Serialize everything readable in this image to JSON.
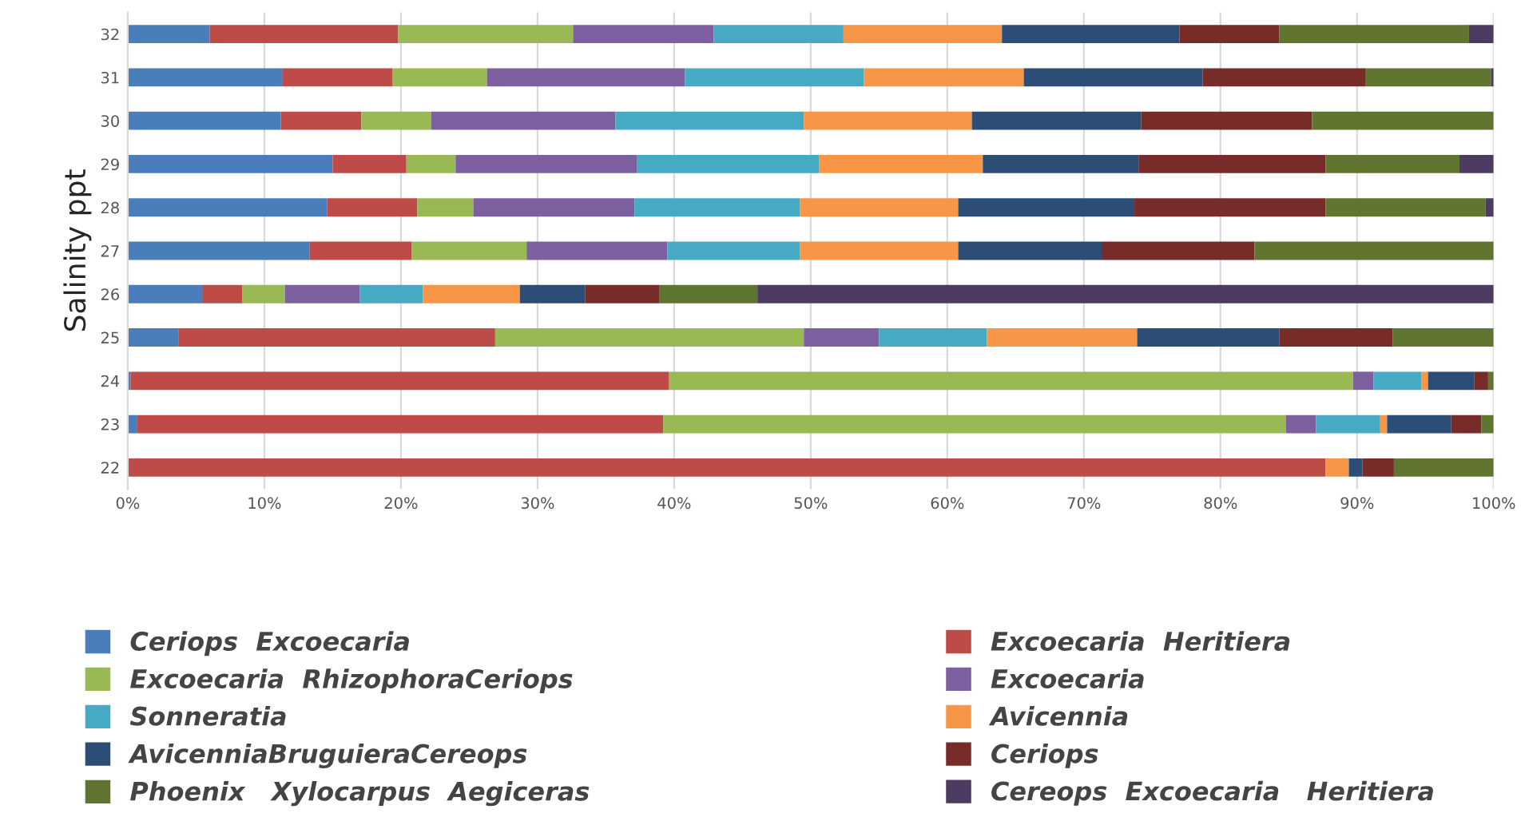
{
  "chart_data": {
    "type": "bar",
    "orientation": "horizontal",
    "stacked": true,
    "ylabel": "Salinity ppt",
    "categories": [
      "32",
      "31",
      "30",
      "29",
      "28",
      "27",
      "26",
      "25",
      "24",
      "23",
      "22"
    ],
    "series": [
      {
        "name": "Ceriops  Excoecaria",
        "color": "#4a7ebb",
        "values": [
          6.0,
          11.3,
          11.2,
          15.0,
          14.6,
          13.3,
          5.5,
          3.7,
          0.2,
          0.7,
          null
        ]
      },
      {
        "name": "Excoecaria  Heritiera",
        "color": "#be4b48",
        "values": [
          13.8,
          8.1,
          5.9,
          5.4,
          6.6,
          7.5,
          2.9,
          23.2,
          39.4,
          38.5,
          87.7
        ]
      },
      {
        "name": "Excoecaria  RhizophoraCeriops",
        "color": "#98b954",
        "values": [
          12.8,
          6.9,
          5.1,
          3.6,
          4.1,
          8.4,
          3.1,
          22.6,
          50.1,
          45.6,
          null
        ]
      },
      {
        "name": "Excoecaria",
        "color": "#7d60a0",
        "values": [
          10.3,
          14.5,
          13.5,
          13.3,
          11.8,
          10.3,
          5.5,
          5.5,
          1.5,
          2.2,
          null
        ]
      },
      {
        "name": "Sonneratia",
        "color": "#46aac5",
        "values": [
          9.5,
          13.1,
          13.8,
          13.3,
          12.1,
          9.7,
          4.6,
          7.9,
          3.5,
          4.7,
          null
        ]
      },
      {
        "name": "Avicennia",
        "color": "#f79646",
        "values": [
          11.6,
          11.7,
          12.3,
          12.0,
          11.6,
          11.6,
          7.1,
          11.0,
          0.5,
          0.5,
          1.7
        ]
      },
      {
        "name": "AvicenniaBruguieraCereops",
        "color": "#2c4d75",
        "values": [
          13.0,
          13.1,
          12.4,
          11.4,
          12.9,
          10.5,
          4.8,
          10.4,
          3.4,
          4.7,
          1.0
        ]
      },
      {
        "name": "Ceriops",
        "color": "#772c2a",
        "values": [
          7.3,
          11.9,
          12.5,
          13.7,
          14.0,
          11.2,
          5.4,
          8.3,
          1.0,
          2.2,
          2.3
        ]
      },
      {
        "name": "Phoenix   Xylocarpus  Aegiceras",
        "color": "#5f7530",
        "values": [
          13.9,
          9.2,
          13.3,
          9.8,
          11.7,
          17.5,
          7.2,
          7.4,
          0.4,
          0.9,
          7.3
        ]
      },
      {
        "name": "Cereops  Excoecaria   Heritiera",
        "color": "#4d3b62",
        "values": [
          1.8,
          0.2,
          null,
          2.5,
          0.6,
          null,
          53.9,
          null,
          null,
          null,
          null
        ]
      }
    ],
    "xlim": [
      0,
      100
    ],
    "xticks": [
      {
        "value": 0,
        "label": "0%"
      },
      {
        "value": 10,
        "label": "10%"
      },
      {
        "value": 20,
        "label": "20%"
      },
      {
        "value": 30,
        "label": "30%"
      },
      {
        "value": 40,
        "label": "40%"
      },
      {
        "value": 50,
        "label": "50%"
      },
      {
        "value": 60,
        "label": "60%"
      },
      {
        "value": 70,
        "label": "70%"
      },
      {
        "value": 80,
        "label": "80%"
      },
      {
        "value": 90,
        "label": "90%"
      },
      {
        "value": 100,
        "label": "100%"
      }
    ],
    "grid": "x",
    "legend": "bottom"
  }
}
